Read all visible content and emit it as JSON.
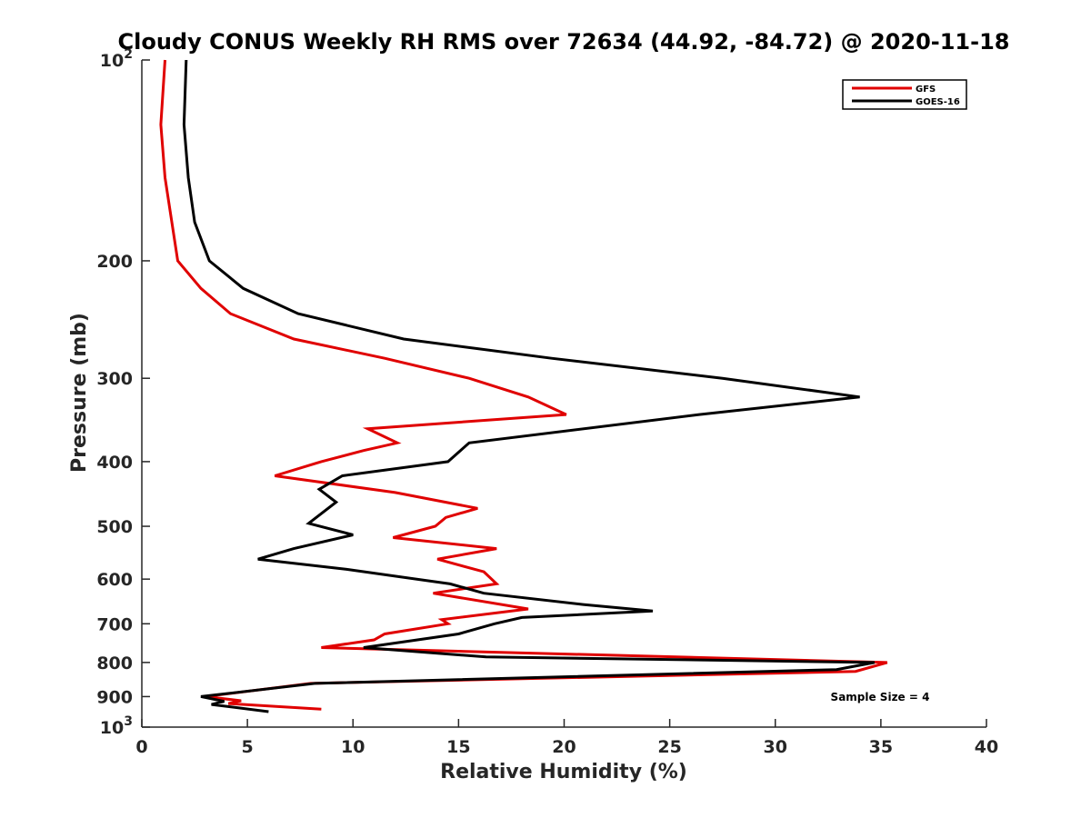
{
  "chart_data": {
    "type": "line",
    "title": "Cloudy CONUS Weekly RH RMS over 72634 (44.92, -84.72) @ 2020-11-18",
    "xlabel": "Relative Humidity (%)",
    "ylabel": "Pressure (mb)",
    "xlim": [
      0,
      40
    ],
    "ylim": [
      100,
      1000
    ],
    "y_scale": "log",
    "y_reversed": true,
    "grid": false,
    "legend_position": "top-right",
    "x_ticks": [
      "0",
      "5",
      "10",
      "15",
      "20",
      "25",
      "30",
      "35",
      "40"
    ],
    "y_ticks": [
      {
        "value": 100,
        "base": "10",
        "exp": "2"
      },
      {
        "value": 200,
        "label": "200"
      },
      {
        "value": 300,
        "label": "300"
      },
      {
        "value": 400,
        "label": "400"
      },
      {
        "value": 500,
        "label": "500"
      },
      {
        "value": 600,
        "label": "600"
      },
      {
        "value": 700,
        "label": "700"
      },
      {
        "value": 800,
        "label": "800"
      },
      {
        "value": 900,
        "label": "900"
      },
      {
        "value": 1000,
        "base": "10",
        "exp": "3"
      }
    ],
    "annotation": "Sample Size = 4",
    "series": [
      {
        "name": "GFS",
        "color": "#e00000",
        "points": [
          [
            1.1,
            100
          ],
          [
            0.9,
            125
          ],
          [
            1.1,
            150
          ],
          [
            1.7,
            200
          ],
          [
            2.8,
            220
          ],
          [
            4.2,
            240
          ],
          [
            7.2,
            262
          ],
          [
            11.5,
            280
          ],
          [
            15.5,
            300
          ],
          [
            18.3,
            320
          ],
          [
            20.1,
            340
          ],
          [
            10.7,
            357
          ],
          [
            12.1,
            375
          ],
          [
            10.5,
            385
          ],
          [
            8.5,
            400
          ],
          [
            6.3,
            420
          ],
          [
            12.0,
            445
          ],
          [
            15.9,
            470
          ],
          [
            14.4,
            485
          ],
          [
            13.9,
            500
          ],
          [
            11.9,
            520
          ],
          [
            16.8,
            540
          ],
          [
            14.0,
            560
          ],
          [
            16.2,
            585
          ],
          [
            16.8,
            610
          ],
          [
            13.8,
            630
          ],
          [
            18.3,
            665
          ],
          [
            14.2,
            690
          ],
          [
            14.5,
            700
          ],
          [
            11.5,
            725
          ],
          [
            11.0,
            740
          ],
          [
            8.5,
            760
          ],
          [
            35.3,
            800
          ],
          [
            33.8,
            825
          ],
          [
            8.0,
            860
          ],
          [
            3.0,
            900
          ],
          [
            4.7,
            913
          ],
          [
            4.1,
            922
          ],
          [
            8.5,
            940
          ]
        ]
      },
      {
        "name": "GOES-16",
        "color": "#000000",
        "points": [
          [
            2.1,
            100
          ],
          [
            2.0,
            125
          ],
          [
            2.2,
            150
          ],
          [
            2.5,
            175
          ],
          [
            3.2,
            200
          ],
          [
            4.8,
            220
          ],
          [
            7.4,
            240
          ],
          [
            12.4,
            262
          ],
          [
            19.4,
            280
          ],
          [
            27.5,
            300
          ],
          [
            34.0,
            320
          ],
          [
            26.4,
            340
          ],
          [
            15.5,
            375
          ],
          [
            14.5,
            400
          ],
          [
            9.5,
            420
          ],
          [
            8.4,
            440
          ],
          [
            9.2,
            460
          ],
          [
            7.9,
            495
          ],
          [
            10.0,
            515
          ],
          [
            7.2,
            540
          ],
          [
            5.5,
            560
          ],
          [
            9.7,
            580
          ],
          [
            14.6,
            610
          ],
          [
            16.2,
            630
          ],
          [
            20.9,
            655
          ],
          [
            24.2,
            670
          ],
          [
            18.0,
            685
          ],
          [
            16.7,
            700
          ],
          [
            15.0,
            725
          ],
          [
            10.5,
            760
          ],
          [
            16.3,
            785
          ],
          [
            34.7,
            800
          ],
          [
            32.9,
            820
          ],
          [
            8.2,
            860
          ],
          [
            2.8,
            900
          ],
          [
            3.9,
            915
          ],
          [
            3.3,
            925
          ],
          [
            6.0,
            948
          ]
        ]
      }
    ]
  }
}
